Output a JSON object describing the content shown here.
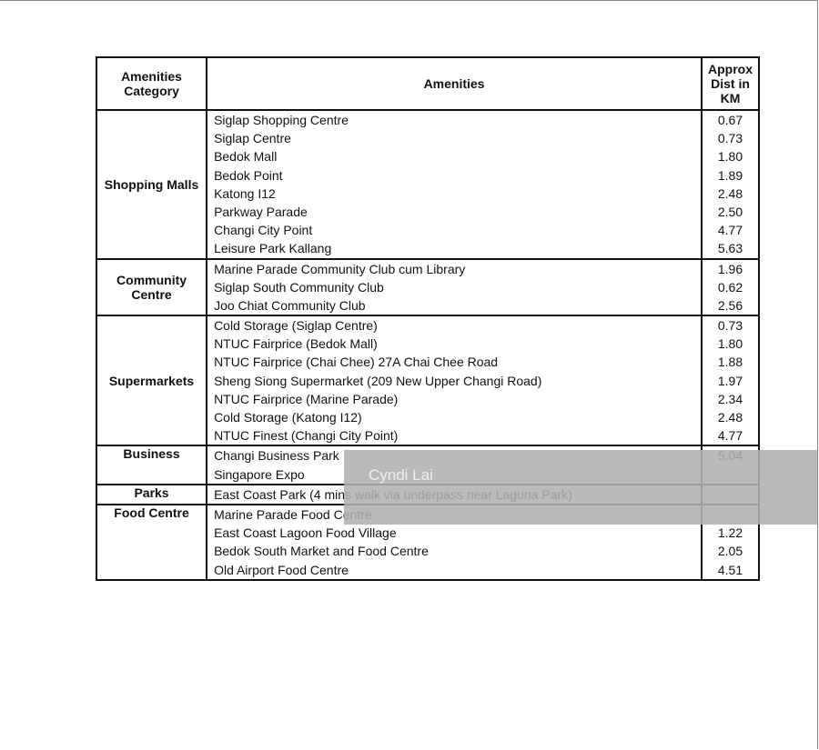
{
  "table": {
    "headers": [
      "Amenities Category",
      "Amenities",
      "Approx Dist in KM"
    ],
    "groups": [
      {
        "category": "Shopping Malls",
        "align": "middle",
        "items": [
          {
            "name": "Siglap Shopping Centre",
            "dist": "0.67"
          },
          {
            "name": "Siglap Centre",
            "dist": "0.73"
          },
          {
            "name": "Bedok Mall",
            "dist": "1.80"
          },
          {
            "name": "Bedok Point",
            "dist": "1.89"
          },
          {
            "name": "Katong I12",
            "dist": "2.48"
          },
          {
            "name": "Parkway Parade",
            "dist": "2.50"
          },
          {
            "name": "Changi City Point",
            "dist": "4.77"
          },
          {
            "name": "Leisure Park Kallang",
            "dist": "5.63"
          }
        ]
      },
      {
        "category": "Community Centre",
        "align": "middle",
        "items": [
          {
            "name": "Marine Parade Community Club cum Library",
            "dist": "1.96"
          },
          {
            "name": "Siglap South Community Club",
            "dist": "0.62"
          },
          {
            "name": "Joo Chiat Community Club",
            "dist": "2.56"
          }
        ]
      },
      {
        "category": "Supermarkets",
        "align": "middle",
        "items": [
          {
            "name": "Cold Storage (Siglap Centre)",
            "dist": "0.73"
          },
          {
            "name": "NTUC Fairprice (Bedok Mall)",
            "dist": "1.80"
          },
          {
            "name": "NTUC Fairprice (Chai Chee) 27A Chai Chee Road",
            "dist": "1.88"
          },
          {
            "name": "Sheng Siong Supermarket (209 New Upper Changi Road)",
            "dist": "1.97"
          },
          {
            "name": "NTUC Fairprice (Marine Parade)",
            "dist": "2.34"
          },
          {
            "name": "Cold Storage (Katong I12)",
            "dist": "2.48"
          },
          {
            "name": "NTUC Finest (Changi City Point)",
            "dist": "4.77"
          }
        ]
      },
      {
        "category": "Business",
        "align": "top",
        "items": [
          {
            "name": "Changi Business Park",
            "dist": "5.04"
          },
          {
            "name": "Singapore Expo",
            "dist": ""
          }
        ]
      },
      {
        "category": "Parks",
        "align": "top",
        "items": [
          {
            "name": "East Coast Park (4 mins walk via underpass near Laguna Park)",
            "dist": ""
          }
        ]
      },
      {
        "category": "Food Centre",
        "align": "top",
        "items": [
          {
            "name": "Marine Parade Food Centre",
            "dist": ""
          },
          {
            "name": "East Coast Lagoon Food Village",
            "dist": "1.22"
          },
          {
            "name": "Bedok South Market and Food Centre",
            "dist": "2.05"
          },
          {
            "name": "Old Airport Food Centre",
            "dist": "4.51"
          }
        ]
      }
    ]
  },
  "watermark": "Cyndi Lai"
}
